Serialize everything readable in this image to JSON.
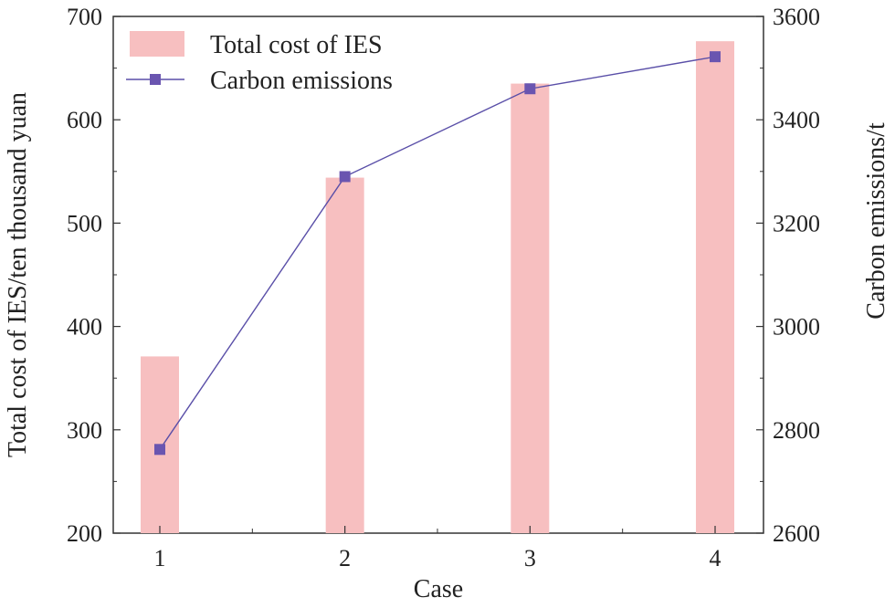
{
  "chart_data": {
    "type": "bar+line",
    "categories": [
      "1",
      "2",
      "3",
      "4"
    ],
    "xlabel": "Case",
    "ylabel_left": "Total cost of IES/ten thousand yuan",
    "ylabel_right": "Carbon emissions/t",
    "ylim_left": [
      200,
      700
    ],
    "ylim_right": [
      2600,
      3600
    ],
    "yticks_left": [
      "200",
      "300",
      "400",
      "500",
      "600",
      "700"
    ],
    "yticks_right": [
      "2600",
      "2800",
      "3000",
      "3200",
      "3400",
      "3600"
    ],
    "legend_position": "top-left",
    "grid": false,
    "series": [
      {
        "name": "Total cost of IES",
        "type": "bar",
        "axis": "left",
        "color": "#f7bfc0",
        "values": [
          371,
          544,
          635,
          676
        ]
      },
      {
        "name": "Carbon emissions",
        "type": "line",
        "axis": "right",
        "color": "#5a4fa8",
        "marker_color": "#6a55b0",
        "values": [
          2762,
          3290,
          3460,
          3522
        ]
      }
    ]
  }
}
